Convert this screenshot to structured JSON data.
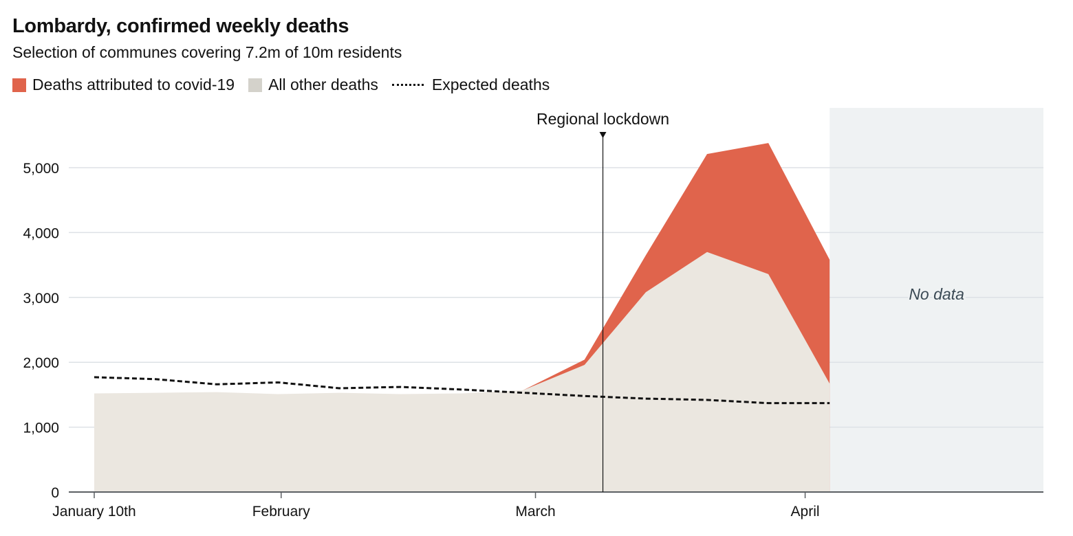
{
  "colors": {
    "covid": "#e0644c",
    "other": "#ebe7e0",
    "expected": "#121212",
    "nodata_bg": "#eff2f3",
    "grid": "#dde1e6",
    "axis": "#5b5f63"
  },
  "chart_data": {
    "type": "area",
    "title": "Lombardy, confirmed weekly deaths",
    "subtitle": "Selection of communes covering 7.2m of 10m residents",
    "xlabel": "",
    "ylabel": "",
    "ylim": [
      0,
      5000
    ],
    "yticks": [
      0,
      1000,
      2000,
      3000,
      4000,
      5000
    ],
    "ytick_labels": [
      "0",
      "1,000",
      "2,000",
      "3,000",
      "4,000",
      "5,000"
    ],
    "xtick_labels": [
      {
        "label": "January 10th",
        "week": 0
      },
      {
        "label": "February",
        "week": 3.05
      },
      {
        "label": "March",
        "week": 7.2
      },
      {
        "label": "April",
        "week": 11.6
      }
    ],
    "x_weeks": [
      0,
      1,
      2,
      3,
      4,
      5,
      6,
      7,
      8,
      9,
      10,
      11,
      12
    ],
    "x_range": [
      0,
      15.5
    ],
    "grid": true,
    "legend_position": "top-left",
    "series": [
      {
        "name": "All other deaths",
        "type": "area",
        "values": [
          1520,
          1530,
          1540,
          1510,
          1530,
          1510,
          1520,
          1570,
          1960,
          3080,
          3700,
          3360,
          1670
        ]
      },
      {
        "name": "Deaths attributed to covid-19",
        "type": "stacked-area",
        "values": [
          0,
          0,
          0,
          0,
          0,
          0,
          0,
          0,
          80,
          570,
          1510,
          2020,
          1910
        ]
      },
      {
        "name": "Expected deaths",
        "type": "dotted-line",
        "values": [
          1770,
          1740,
          1660,
          1690,
          1600,
          1620,
          1580,
          1530,
          1480,
          1440,
          1420,
          1370,
          1370
        ]
      }
    ],
    "totals": [
      1520,
      1530,
      1540,
      1510,
      1530,
      1510,
      1520,
      1570,
      2040,
      3650,
      5210,
      5380,
      3580
    ],
    "annotations": [
      {
        "label": "Regional lockdown",
        "type": "vertical-line",
        "week": 8.3
      },
      {
        "label": "No data",
        "type": "shaded-region",
        "from_week": 12,
        "to_week": 15.5
      }
    ]
  },
  "legend": {
    "covid": "Deaths attributed to covid-19",
    "other": "All other deaths",
    "expected": "Expected deaths"
  }
}
